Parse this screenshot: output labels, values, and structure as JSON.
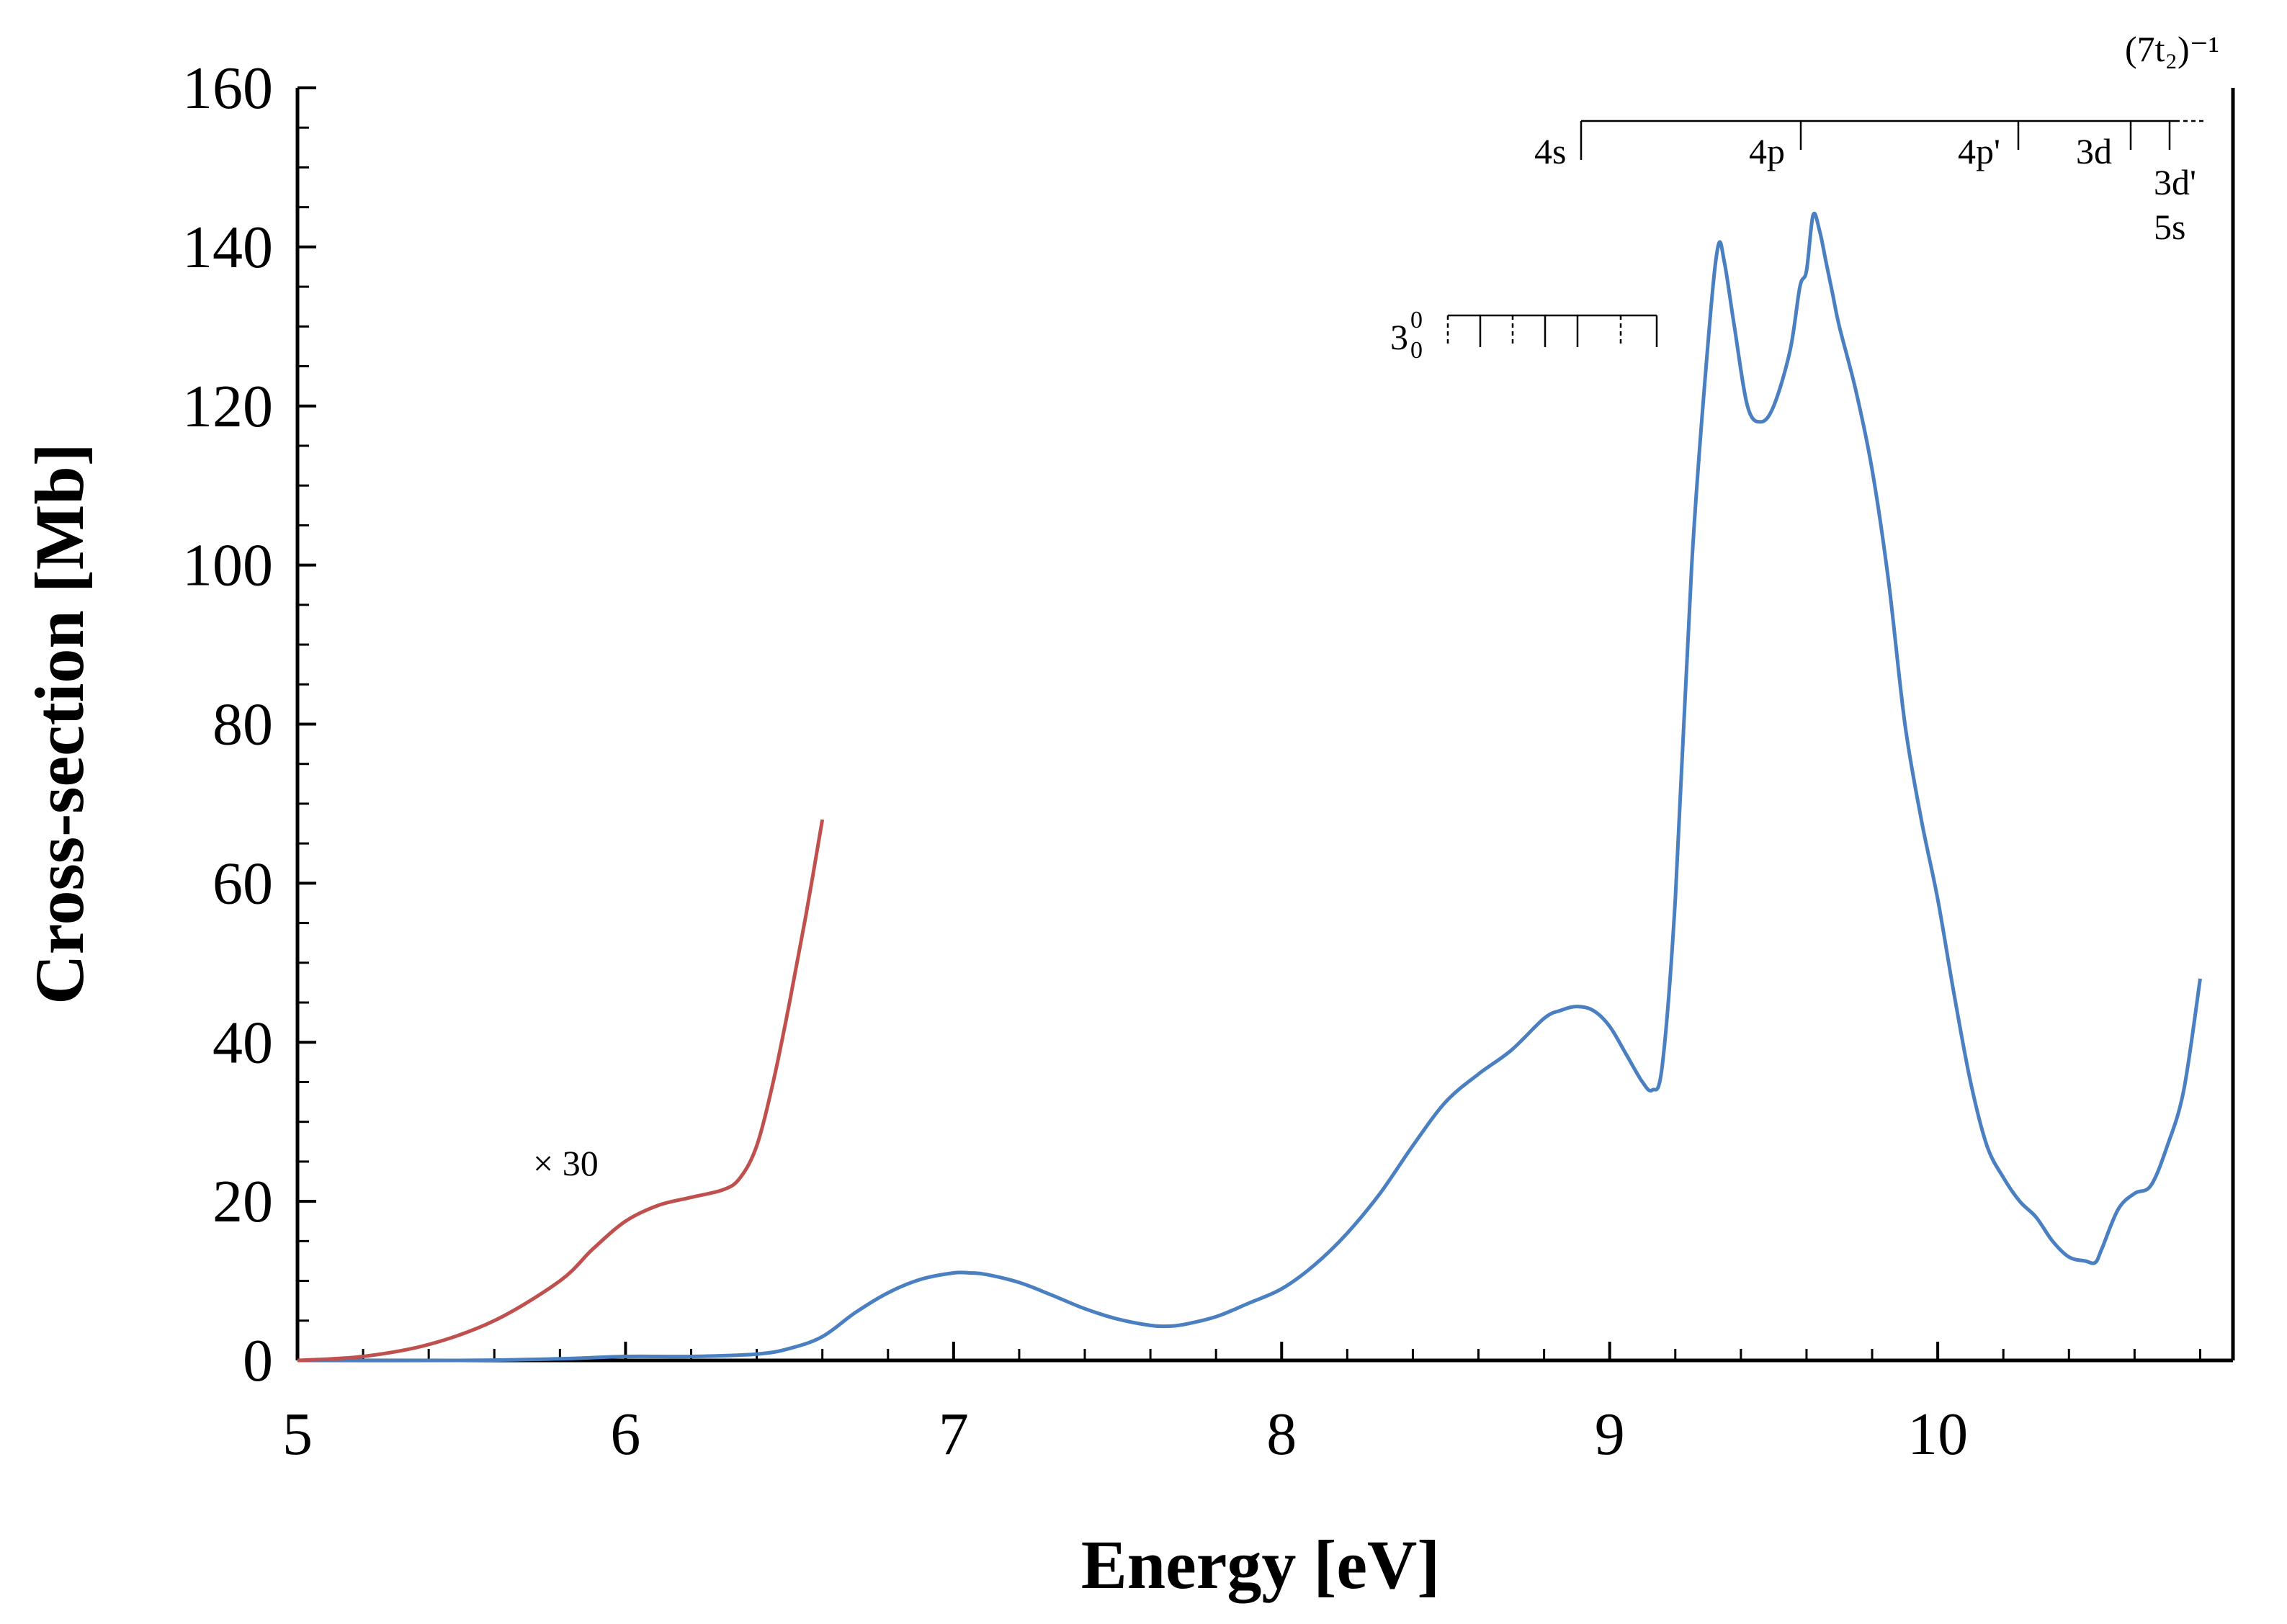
{
  "chart_data": {
    "type": "line",
    "title": "",
    "xlabel": "Energy [eV]",
    "ylabel": "Cross-section [Mb]",
    "xlim": [
      5,
      10.9
    ],
    "ylim": [
      0,
      160
    ],
    "xticks": [
      5,
      6,
      7,
      8,
      9,
      10
    ],
    "yticks": [
      0,
      20,
      40,
      60,
      80,
      100,
      120,
      140,
      160
    ],
    "grid": false,
    "legend": "none",
    "series": [
      {
        "name": "Cross-section",
        "color": "#4a7fc1",
        "x": [
          5.0,
          5.5,
          5.8,
          6.0,
          6.2,
          6.4,
          6.5,
          6.6,
          6.7,
          6.8,
          6.9,
          7.0,
          7.05,
          7.1,
          7.2,
          7.3,
          7.4,
          7.5,
          7.6,
          7.65,
          7.7,
          7.8,
          7.9,
          8.0,
          8.1,
          8.2,
          8.3,
          8.4,
          8.5,
          8.6,
          8.7,
          8.8,
          8.85,
          8.9,
          8.95,
          9.0,
          9.05,
          9.1,
          9.13,
          9.16,
          9.2,
          9.25,
          9.3,
          9.33,
          9.35,
          9.38,
          9.42,
          9.46,
          9.5,
          9.55,
          9.58,
          9.6,
          9.62,
          9.64,
          9.66,
          9.68,
          9.7,
          9.75,
          9.8,
          9.85,
          9.9,
          9.95,
          10.0,
          10.05,
          10.1,
          10.15,
          10.2,
          10.25,
          10.3,
          10.35,
          10.4,
          10.45,
          10.48,
          10.5,
          10.55,
          10.6,
          10.65,
          10.7,
          10.75,
          10.8
        ],
        "y": [
          0,
          0,
          0.2,
          0.5,
          0.5,
          0.8,
          1.5,
          3,
          6,
          8.5,
          10.2,
          11,
          11,
          10.8,
          9.8,
          8.2,
          6.5,
          5.2,
          4.4,
          4.3,
          4.5,
          5.5,
          7.2,
          9,
          12,
          16,
          21,
          27,
          32.5,
          36,
          39,
          43,
          44,
          44.5,
          44,
          42,
          38.5,
          35,
          34,
          37,
          58,
          100,
          128,
          140,
          138,
          130,
          120,
          118,
          120,
          127,
          135,
          137,
          144,
          142,
          138,
          134,
          130,
          122,
          112,
          98,
          80,
          68,
          58,
          46,
          35,
          27,
          23,
          20,
          18,
          15,
          13,
          12.5,
          12.3,
          14,
          19,
          21,
          22,
          27,
          34,
          48
        ]
      },
      {
        "name": "× 30",
        "color": "#c0504d",
        "x": [
          5.0,
          5.2,
          5.4,
          5.6,
          5.8,
          5.9,
          6.0,
          6.1,
          6.2,
          6.3,
          6.35,
          6.4,
          6.45,
          6.5,
          6.55,
          6.6
        ],
        "y": [
          0,
          0.5,
          2,
          5,
          10,
          14,
          17.5,
          19.5,
          20.5,
          21.5,
          23,
          27,
          35,
          45,
          56,
          68
        ]
      }
    ],
    "annotations": {
      "scale_label": "× 30",
      "vibrational_label": "3",
      "vibrational_superscript": "0",
      "vibrational_subscript": "0",
      "ionization_label": "(7t₂)⁻¹",
      "rydberg_labels": [
        "4s",
        "4p",
        "4p'",
        "3d",
        "3d'",
        "5s"
      ]
    }
  }
}
